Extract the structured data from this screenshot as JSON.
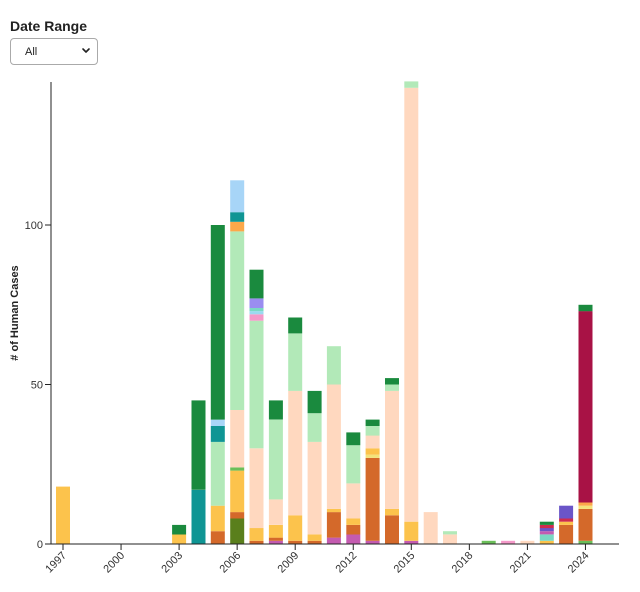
{
  "filter": {
    "title": "Date Range",
    "selected": "All"
  },
  "chart_data": {
    "type": "bar",
    "stacked": true,
    "ylabel": "# of Human Cases",
    "ylim": [
      0,
      145
    ],
    "yticks": [
      0,
      50,
      100
    ],
    "xticks": [
      "1997",
      "2000",
      "2003",
      "2006",
      "2009",
      "2012",
      "2015",
      "2018",
      "2021",
      "2024"
    ],
    "grid": false,
    "legend": "none",
    "years": [
      {
        "year": 1997,
        "segments": [
          {
            "value": 18,
            "color": "#fcc34c"
          }
        ]
      },
      {
        "year": 2003,
        "segments": [
          {
            "value": 3,
            "color": "#fcc34c"
          },
          {
            "value": 3,
            "color": "#1a8a3e"
          }
        ]
      },
      {
        "year": 2004,
        "segments": [
          {
            "value": 17,
            "color": "#0f9594"
          },
          {
            "value": 28,
            "color": "#1a8a3e"
          }
        ]
      },
      {
        "year": 2005,
        "segments": [
          {
            "value": 4,
            "color": "#d4692a"
          },
          {
            "value": 8,
            "color": "#fcc34c"
          },
          {
            "value": 20,
            "color": "#b2e9b8"
          },
          {
            "value": 5,
            "color": "#0f9594"
          },
          {
            "value": 2,
            "color": "#a7d5f7"
          },
          {
            "value": 61,
            "color": "#1a8a3e"
          }
        ]
      },
      {
        "year": 2006,
        "segments": [
          {
            "value": 8,
            "color": "#5a7f1c"
          },
          {
            "value": 2,
            "color": "#d4692a"
          },
          {
            "value": 13,
            "color": "#fcc34c"
          },
          {
            "value": 1,
            "color": "#6bbf59"
          },
          {
            "value": 18,
            "color": "#ffd8bf"
          },
          {
            "value": 56,
            "color": "#b2e9b8"
          },
          {
            "value": 3,
            "color": "#fca84a"
          },
          {
            "value": 3,
            "color": "#0f9594"
          },
          {
            "value": 10,
            "color": "#a7d5f7"
          }
        ]
      },
      {
        "year": 2007,
        "segments": [
          {
            "value": 1,
            "color": "#d4692a"
          },
          {
            "value": 4,
            "color": "#fcc34c"
          },
          {
            "value": 25,
            "color": "#ffd8bf"
          },
          {
            "value": 40,
            "color": "#b2e9b8"
          },
          {
            "value": 2,
            "color": "#f499c9"
          },
          {
            "value": 1,
            "color": "#9bd9f0"
          },
          {
            "value": 1,
            "color": "#7ad8c3"
          },
          {
            "value": 3,
            "color": "#9a8df0"
          },
          {
            "value": 9,
            "color": "#1a8a3e"
          }
        ]
      },
      {
        "year": 2008,
        "segments": [
          {
            "value": 1,
            "color": "#c45bb0"
          },
          {
            "value": 1,
            "color": "#d4692a"
          },
          {
            "value": 4,
            "color": "#fcc34c"
          },
          {
            "value": 8,
            "color": "#ffd8bf"
          },
          {
            "value": 25,
            "color": "#b2e9b8"
          },
          {
            "value": 6,
            "color": "#1a8a3e"
          }
        ]
      },
      {
        "year": 2009,
        "segments": [
          {
            "value": 1,
            "color": "#d4692a"
          },
          {
            "value": 8,
            "color": "#fcc34c"
          },
          {
            "value": 39,
            "color": "#ffd8bf"
          },
          {
            "value": 18,
            "color": "#b2e9b8"
          },
          {
            "value": 5,
            "color": "#1a8a3e"
          }
        ]
      },
      {
        "year": 2010,
        "segments": [
          {
            "value": 1,
            "color": "#d4692a"
          },
          {
            "value": 2,
            "color": "#fcc34c"
          },
          {
            "value": 29,
            "color": "#ffd8bf"
          },
          {
            "value": 9,
            "color": "#b2e9b8"
          },
          {
            "value": 7,
            "color": "#1a8a3e"
          }
        ]
      },
      {
        "year": 2011,
        "segments": [
          {
            "value": 2,
            "color": "#c45bb0"
          },
          {
            "value": 8,
            "color": "#d4692a"
          },
          {
            "value": 1,
            "color": "#fcc34c"
          },
          {
            "value": 39,
            "color": "#ffd8bf"
          },
          {
            "value": 12,
            "color": "#b2e9b8"
          }
        ]
      },
      {
        "year": 2012,
        "segments": [
          {
            "value": 3,
            "color": "#c45bb0"
          },
          {
            "value": 3,
            "color": "#d4692a"
          },
          {
            "value": 2,
            "color": "#fcc34c"
          },
          {
            "value": 11,
            "color": "#ffd8bf"
          },
          {
            "value": 12,
            "color": "#b2e9b8"
          },
          {
            "value": 4,
            "color": "#1a8a3e"
          }
        ]
      },
      {
        "year": 2013,
        "segments": [
          {
            "value": 1,
            "color": "#c45bb0"
          },
          {
            "value": 26,
            "color": "#d4692a"
          },
          {
            "value": 1,
            "color": "#f3e37a"
          },
          {
            "value": 2,
            "color": "#fcc34c"
          },
          {
            "value": 4,
            "color": "#ffd8bf"
          },
          {
            "value": 3,
            "color": "#b2e9b8"
          },
          {
            "value": 2,
            "color": "#1a8a3e"
          }
        ]
      },
      {
        "year": 2014,
        "segments": [
          {
            "value": 9,
            "color": "#d4692a"
          },
          {
            "value": 2,
            "color": "#fcc34c"
          },
          {
            "value": 37,
            "color": "#ffd8bf"
          },
          {
            "value": 2,
            "color": "#b2e9b8"
          },
          {
            "value": 2,
            "color": "#1a8a3e"
          }
        ]
      },
      {
        "year": 2015,
        "segments": [
          {
            "value": 1,
            "color": "#c45bb0"
          },
          {
            "value": 6,
            "color": "#fcc34c"
          },
          {
            "value": 136,
            "color": "#ffd8bf"
          },
          {
            "value": 2,
            "color": "#b2e9b8"
          }
        ]
      },
      {
        "year": 2016,
        "segments": [
          {
            "value": 10,
            "color": "#ffd8bf"
          }
        ]
      },
      {
        "year": 2017,
        "segments": [
          {
            "value": 3,
            "color": "#ffd8bf"
          },
          {
            "value": 1,
            "color": "#b2e9b8"
          }
        ]
      },
      {
        "year": 2019,
        "segments": [
          {
            "value": 1,
            "color": "#6bbf59"
          }
        ]
      },
      {
        "year": 2020,
        "segments": [
          {
            "value": 1,
            "color": "#f499c9"
          }
        ]
      },
      {
        "year": 2021,
        "segments": [
          {
            "value": 1,
            "color": "#ffd8bf"
          }
        ]
      },
      {
        "year": 2022,
        "segments": [
          {
            "value": 1,
            "color": "#fcc34c"
          },
          {
            "value": 2,
            "color": "#7ad8c3"
          },
          {
            "value": 1,
            "color": "#c45bb0"
          },
          {
            "value": 1,
            "color": "#6a55c8"
          },
          {
            "value": 1,
            "color": "#ce2b4f"
          },
          {
            "value": 1,
            "color": "#1a8a3e"
          }
        ]
      },
      {
        "year": 2023,
        "segments": [
          {
            "value": 6,
            "color": "#d4692a"
          },
          {
            "value": 1,
            "color": "#fcc34c"
          },
          {
            "value": 1,
            "color": "#ce2b4f"
          },
          {
            "value": 4,
            "color": "#6a55c8"
          }
        ]
      },
      {
        "year": 2024,
        "segments": [
          {
            "value": 1,
            "color": "#6bbf59"
          },
          {
            "value": 10,
            "color": "#d4692a"
          },
          {
            "value": 1,
            "color": "#f3e37a"
          },
          {
            "value": 1,
            "color": "#fca84a"
          },
          {
            "value": 60,
            "color": "#a81245"
          },
          {
            "value": 2,
            "color": "#1a8a3e"
          }
        ]
      }
    ]
  }
}
